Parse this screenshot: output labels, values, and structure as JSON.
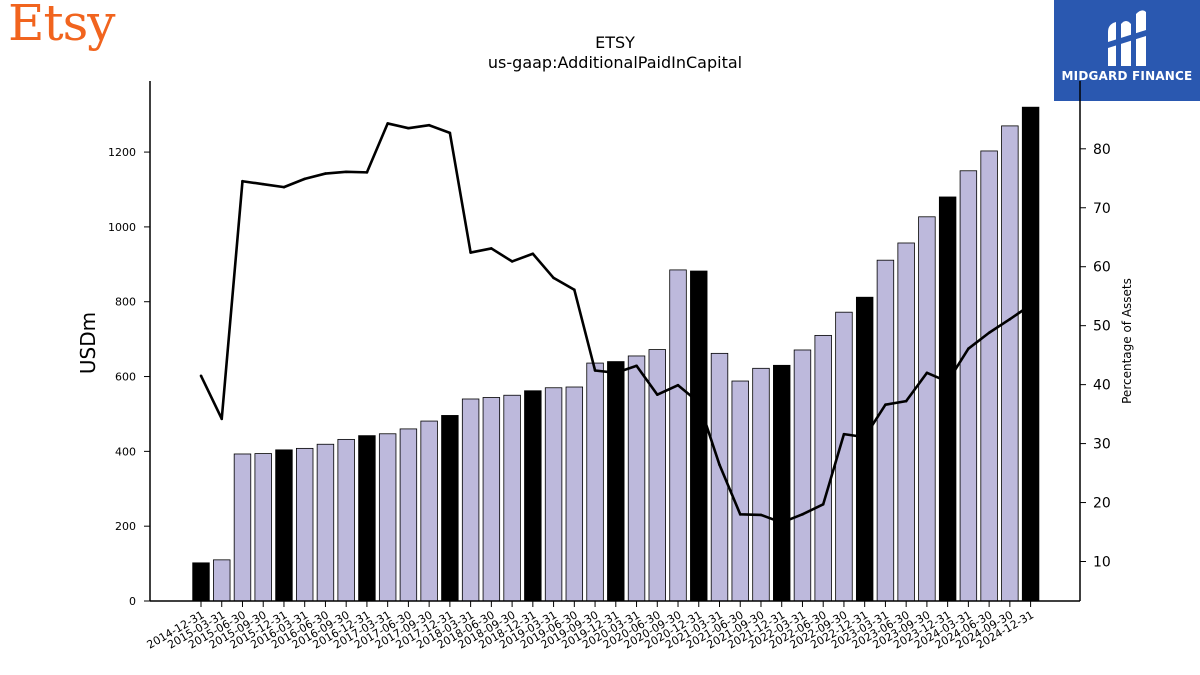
{
  "branding": {
    "company_logo_text": "Etsy",
    "watermark_text": "MIDGARD FINANCE"
  },
  "colors": {
    "bar_default": "#bdb9dc",
    "bar_highlight": "#000000",
    "line": "#000000",
    "logo": "#F1641E",
    "badge": "#2a58b0"
  },
  "chart_data": {
    "type": "bar",
    "title": "ETSY",
    "subtitle": "us-gaap:AdditionalPaidInCapital",
    "ylabel": "USDm",
    "y2label": "Percentage of Assets",
    "ylim": [
      0,
      1390
    ],
    "y2lim": [
      3.3,
      91.5
    ],
    "yticks": [
      0,
      200,
      400,
      600,
      800,
      1000,
      1200
    ],
    "y2ticks": [
      10,
      20,
      30,
      40,
      50,
      60,
      70,
      80
    ],
    "grid": false,
    "categories": [
      "2014-12-31",
      "2015-03-31",
      "2015-06-30",
      "2015-09-30",
      "2015-12-31",
      "2016-03-31",
      "2016-06-30",
      "2016-09-30",
      "2016-12-31",
      "2017-03-31",
      "2017-06-30",
      "2017-09-30",
      "2017-12-31",
      "2018-03-31",
      "2018-06-30",
      "2018-09-30",
      "2018-12-31",
      "2019-03-31",
      "2019-06-30",
      "2019-09-30",
      "2019-12-31",
      "2020-03-31",
      "2020-06-30",
      "2020-09-30",
      "2020-12-31",
      "2021-03-31",
      "2021-06-30",
      "2021-09-30",
      "2021-12-31",
      "2022-03-31",
      "2022-06-30",
      "2022-09-30",
      "2022-12-31",
      "2023-03-31",
      "2023-06-30",
      "2023-09-30",
      "2023-12-31",
      "2024-03-31",
      "2024-06-30",
      "2024-09-30",
      "2024-12-31"
    ],
    "series": [
      {
        "kind": "bar",
        "axis": "left",
        "values": [
          102,
          110,
          393,
          394,
          404,
          408,
          419,
          432,
          442,
          447,
          460,
          481,
          496,
          540,
          544,
          550,
          562,
          570,
          572,
          636,
          640,
          655,
          672,
          885,
          882,
          662,
          588,
          622,
          630,
          671,
          710,
          772,
          812,
          911,
          957,
          1027,
          1080,
          1150,
          1203,
          1270,
          1320
        ]
      },
      {
        "kind": "line",
        "axis": "right",
        "values": [
          41.5,
          34.2,
          74.5,
          74.0,
          73.5,
          74.9,
          75.8,
          76.1,
          76.0,
          84.3,
          83.5,
          84.0,
          82.7,
          62.4,
          63.1,
          60.9,
          62.2,
          58.1,
          56.1,
          42.4,
          42.0,
          43.2,
          38.3,
          39.9,
          37.0,
          26.4,
          18.0,
          17.9,
          16.6,
          18.0,
          19.7,
          31.6,
          31.1,
          36.6,
          37.2,
          42.0,
          40.5,
          46.1,
          48.8,
          51.1,
          53.5
        ]
      }
    ]
  }
}
